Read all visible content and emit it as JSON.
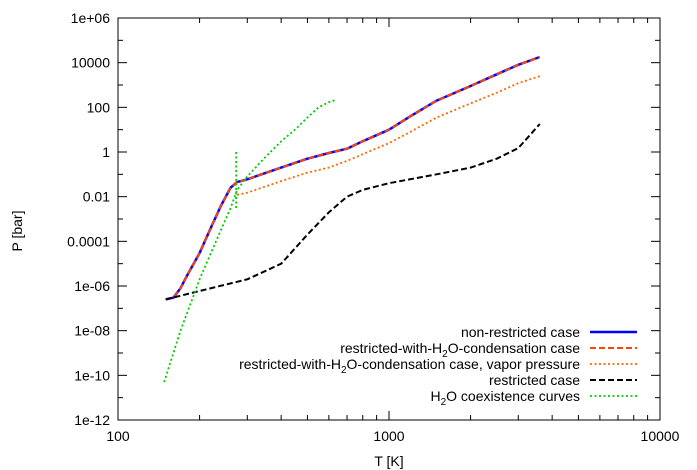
{
  "chart_data": {
    "type": "line",
    "title": "",
    "xlabel": "T [K]",
    "ylabel": "P [bar]",
    "xscale": "log",
    "yscale": "log",
    "xlim": [
      100,
      10000
    ],
    "ylim": [
      1e-12,
      1000000.0
    ],
    "xticks": [
      "100",
      "1000",
      "10000"
    ],
    "yticks": [
      "1e-12",
      "1e-10",
      "1e-08",
      "1e-06",
      "0.0001",
      "0.01",
      "1",
      "100",
      "10000",
      "1e+06"
    ],
    "grid": false,
    "legend_position": "bottom-right",
    "series": [
      {
        "name": "non-restricted case",
        "color": "#0000ff",
        "style": "solid",
        "points": [
          [
            150,
            2.5e-07
          ],
          [
            160,
            3e-07
          ],
          [
            170,
            8e-07
          ],
          [
            180,
            3e-06
          ],
          [
            200,
            3e-05
          ],
          [
            220,
            0.0004
          ],
          [
            240,
            0.004
          ],
          [
            260,
            0.025
          ],
          [
            275,
            0.045
          ],
          [
            300,
            0.06
          ],
          [
            400,
            0.2
          ],
          [
            500,
            0.5
          ],
          [
            600,
            0.9
          ],
          [
            700,
            1.4
          ],
          [
            800,
            3
          ],
          [
            1000,
            10
          ],
          [
            1200,
            40
          ],
          [
            1500,
            200
          ],
          [
            2000,
            900
          ],
          [
            2500,
            3000
          ],
          [
            3000,
            8000
          ],
          [
            3600,
            18000
          ]
        ]
      },
      {
        "name": "restricted-with-H2O-condensation case",
        "color": "#ff4500",
        "style": "dashed",
        "points": [
          [
            150,
            2.5e-07
          ],
          [
            160,
            3e-07
          ],
          [
            170,
            8e-07
          ],
          [
            180,
            3e-06
          ],
          [
            200,
            3e-05
          ],
          [
            220,
            0.0004
          ],
          [
            240,
            0.004
          ],
          [
            260,
            0.025
          ],
          [
            275,
            0.045
          ],
          [
            300,
            0.06
          ],
          [
            400,
            0.2
          ],
          [
            500,
            0.5
          ],
          [
            600,
            0.9
          ],
          [
            700,
            1.4
          ],
          [
            800,
            3
          ],
          [
            1000,
            10
          ],
          [
            1200,
            40
          ],
          [
            1500,
            200
          ],
          [
            2000,
            900
          ],
          [
            2500,
            3000
          ],
          [
            3000,
            8000
          ],
          [
            3600,
            18000
          ]
        ]
      },
      {
        "name": "restricted-with-H2O-condensation case, vapor pressure",
        "color": "#ff6600",
        "style": "dotted",
        "points": [
          [
            275,
            0.012
          ],
          [
            300,
            0.015
          ],
          [
            400,
            0.05
          ],
          [
            500,
            0.12
          ],
          [
            600,
            0.2
          ],
          [
            700,
            0.4
          ],
          [
            800,
            0.8
          ],
          [
            1000,
            2.5
          ],
          [
            1200,
            8
          ],
          [
            1500,
            35
          ],
          [
            2000,
            150
          ],
          [
            2500,
            450
          ],
          [
            3000,
            1200
          ],
          [
            3600,
            2500
          ]
        ]
      },
      {
        "name": "restricted case",
        "color": "#000000",
        "style": "dashed",
        "points": [
          [
            150,
            2.5e-07
          ],
          [
            200,
            6e-07
          ],
          [
            300,
            2e-06
          ],
          [
            400,
            1e-05
          ],
          [
            500,
            0.0002
          ],
          [
            600,
            0.002
          ],
          [
            700,
            0.01
          ],
          [
            800,
            0.02
          ],
          [
            1000,
            0.04
          ],
          [
            1500,
            0.1
          ],
          [
            2000,
            0.2
          ],
          [
            2500,
            0.5
          ],
          [
            3000,
            1.5
          ],
          [
            3600,
            18
          ]
        ]
      },
      {
        "name": "H2O coexistence curves",
        "color": "#00cc00",
        "style": "dotted",
        "points": [
          [
            148,
            5e-11
          ],
          [
            170,
            1e-08
          ],
          [
            200,
            2e-06
          ],
          [
            230,
            0.0001
          ],
          [
            260,
            0.003
          ],
          [
            275,
            0.02
          ],
          [
            300,
            0.08
          ],
          [
            350,
            0.6
          ],
          [
            400,
            3
          ],
          [
            450,
            10
          ],
          [
            500,
            35
          ],
          [
            550,
            100
          ],
          [
            600,
            170
          ],
          [
            640,
            220
          ]
        ],
        "extra_segments": [
          [
            [
              273,
              1.0
            ],
            [
              273,
              0.003
            ]
          ]
        ]
      }
    ]
  },
  "legend": {
    "entries": [
      {
        "parts": [
          {
            "t": "non-restricted case"
          }
        ]
      },
      {
        "parts": [
          {
            "t": "restricted-with-H"
          },
          {
            "t": "2",
            "sub": true
          },
          {
            "t": "O-condensation case"
          }
        ]
      },
      {
        "parts": [
          {
            "t": "restricted-with-H"
          },
          {
            "t": "2",
            "sub": true
          },
          {
            "t": "O-condensation case, vapor pressure"
          }
        ]
      },
      {
        "parts": [
          {
            "t": "restricted case"
          }
        ]
      },
      {
        "parts": [
          {
            "t": "H"
          },
          {
            "t": "2",
            "sub": true
          },
          {
            "t": "O coexistence curves"
          }
        ]
      }
    ]
  }
}
